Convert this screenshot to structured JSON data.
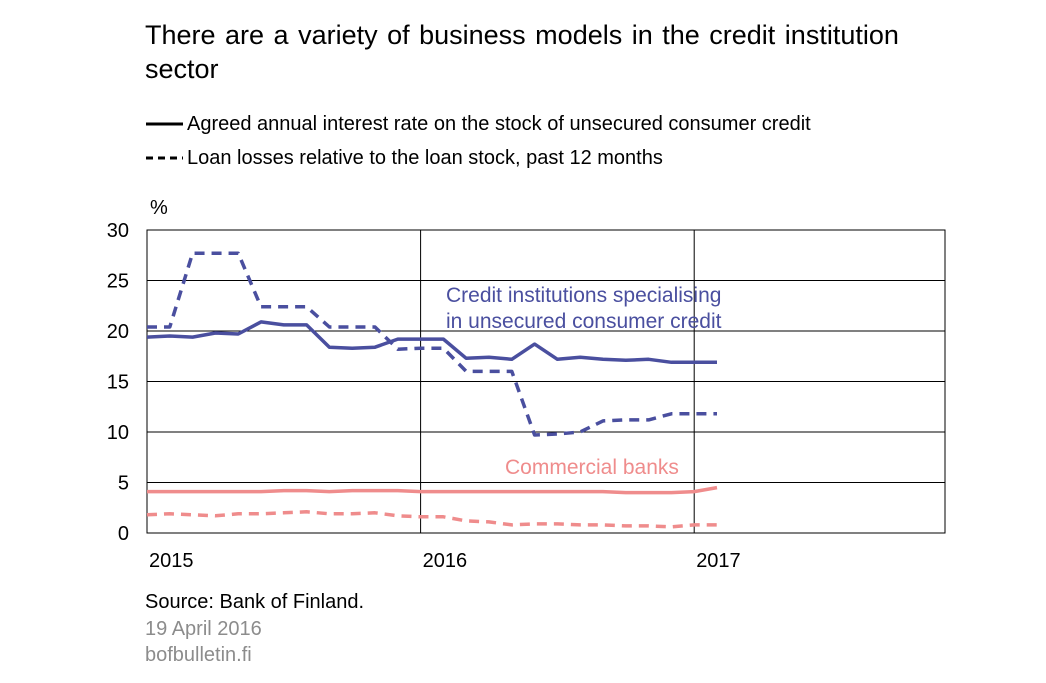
{
  "title": "There are a variety of business models in the credit institution sector",
  "legend": [
    {
      "label": "Agreed annual interest rate on the stock of unsecured consumer credit",
      "style": "solid"
    },
    {
      "label": "Loan losses relative to the loan stock, past 12 months",
      "style": "dashed"
    }
  ],
  "footer": {
    "source": "Source: Bank of Finland.",
    "date": "19 April 2016",
    "site": "bofbulletin.fi"
  },
  "colors": {
    "credit_institutions": "#4a4f9f",
    "commercial_banks": "#ef8c8c",
    "axis": "#000000",
    "grid": "#000000"
  },
  "chart_data": {
    "type": "line",
    "unit_label": "%",
    "ylim": [
      0,
      30
    ],
    "yticks": [
      0,
      5,
      10,
      15,
      20,
      25,
      30
    ],
    "xlim": [
      2015.0,
      2017.9167
    ],
    "xticks": [
      {
        "value": 2015,
        "label": "2015"
      },
      {
        "value": 2016,
        "label": "2016"
      },
      {
        "value": 2017,
        "label": "2017"
      }
    ],
    "grid": true,
    "annotations": [
      {
        "text": "Credit institutions specialising\nin unsecured consumer credit",
        "color": "#4a4f9f"
      },
      {
        "text": "Commercial banks",
        "color": "#ef8c8c"
      }
    ],
    "series": [
      {
        "group": "Credit institutions specialising in unsecured consumer credit",
        "measure": "Agreed annual interest rate on the stock of unsecured consumer credit",
        "style": "solid",
        "color": "#4a4f9f",
        "x": [
          2015.0,
          2015.0833,
          2015.1667,
          2015.25,
          2015.3333,
          2015.4167,
          2015.5,
          2015.5833,
          2015.6667,
          2015.75,
          2015.8333,
          2015.9167,
          2016.0,
          2016.0833,
          2016.1667,
          2016.25,
          2016.3333,
          2016.4167,
          2016.5,
          2016.5833,
          2016.6667,
          2016.75,
          2016.8333,
          2016.9167,
          2017.0833
        ],
        "y": [
          19.4,
          19.5,
          19.4,
          19.8,
          19.7,
          20.9,
          20.6,
          20.6,
          18.4,
          18.3,
          18.4,
          19.2,
          19.2,
          19.2,
          17.3,
          17.4,
          17.2,
          18.7,
          17.2,
          17.4,
          17.2,
          17.1,
          17.2,
          16.9,
          16.9
        ]
      },
      {
        "group": "Credit institutions specialising in unsecured consumer credit",
        "measure": "Loan losses relative to the loan stock, past 12 months",
        "style": "dashed",
        "color": "#4a4f9f",
        "x": [
          2015.0,
          2015.0833,
          2015.1667,
          2015.25,
          2015.3333,
          2015.4167,
          2015.5,
          2015.5833,
          2015.6667,
          2015.75,
          2015.8333,
          2015.9167,
          2016.0,
          2016.0833,
          2016.1667,
          2016.25,
          2016.3333,
          2016.4167,
          2016.5,
          2016.5833,
          2016.6667,
          2016.75,
          2016.8333,
          2016.9167,
          2017.0833
        ],
        "y": [
          20.4,
          20.4,
          27.7,
          27.7,
          27.7,
          22.4,
          22.4,
          22.4,
          20.4,
          20.4,
          20.4,
          18.2,
          18.3,
          18.3,
          16.0,
          16.0,
          16.0,
          9.7,
          9.8,
          10.0,
          11.1,
          11.2,
          11.2,
          11.8,
          11.8
        ]
      },
      {
        "group": "Commercial banks",
        "measure": "Agreed annual interest rate on the stock of unsecured consumer credit",
        "style": "solid",
        "color": "#ef8c8c",
        "x": [
          2015.0,
          2015.0833,
          2015.1667,
          2015.25,
          2015.3333,
          2015.4167,
          2015.5,
          2015.5833,
          2015.6667,
          2015.75,
          2015.8333,
          2015.9167,
          2016.0,
          2016.0833,
          2016.1667,
          2016.25,
          2016.3333,
          2016.4167,
          2016.5,
          2016.5833,
          2016.6667,
          2016.75,
          2016.8333,
          2016.9167,
          2017.0,
          2017.0833
        ],
        "y": [
          4.1,
          4.1,
          4.1,
          4.1,
          4.1,
          4.1,
          4.2,
          4.2,
          4.1,
          4.2,
          4.2,
          4.2,
          4.1,
          4.1,
          4.1,
          4.1,
          4.1,
          4.1,
          4.1,
          4.1,
          4.1,
          4.0,
          4.0,
          4.0,
          4.1,
          4.5
        ]
      },
      {
        "group": "Commercial banks",
        "measure": "Loan losses relative to the loan stock, past 12 months",
        "style": "dashed",
        "color": "#ef8c8c",
        "x": [
          2015.0,
          2015.0833,
          2015.1667,
          2015.25,
          2015.3333,
          2015.4167,
          2015.5,
          2015.5833,
          2015.6667,
          2015.75,
          2015.8333,
          2015.9167,
          2016.0,
          2016.0833,
          2016.1667,
          2016.25,
          2016.3333,
          2016.4167,
          2016.5,
          2016.5833,
          2016.6667,
          2016.75,
          2016.8333,
          2016.9167,
          2017.0,
          2017.0833
        ],
        "y": [
          1.8,
          1.9,
          1.8,
          1.7,
          1.9,
          1.9,
          2.0,
          2.1,
          1.9,
          1.9,
          2.0,
          1.7,
          1.6,
          1.6,
          1.2,
          1.1,
          0.8,
          0.9,
          0.9,
          0.8,
          0.8,
          0.7,
          0.7,
          0.6,
          0.8,
          0.8
        ]
      }
    ]
  }
}
